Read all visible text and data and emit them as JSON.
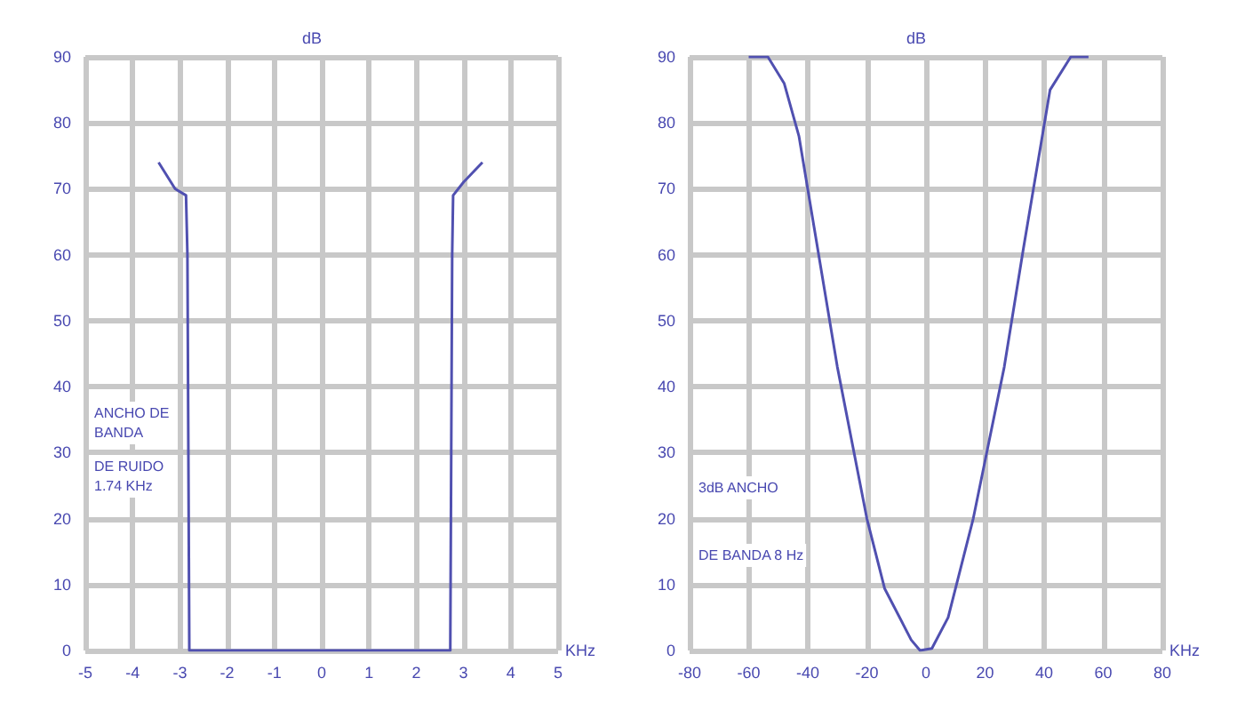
{
  "chart_data": [
    {
      "type": "line",
      "xlabel": "KHz",
      "ylabel": "dB",
      "x": [
        -3.45,
        -3.1,
        -2.87,
        -2.84,
        -2.8,
        2.72,
        2.76,
        2.78,
        3.0,
        3.4
      ],
      "series": [
        {
          "color": "#5050b0",
          "values": [
            74,
            70,
            69,
            60,
            0,
            0,
            60,
            69,
            71,
            74
          ]
        }
      ],
      "xlim": [
        -5,
        5
      ],
      "xticks": [
        -5,
        -4,
        -3,
        -2,
        -1,
        0,
        1,
        2,
        3,
        4,
        5
      ],
      "ylim": [
        0,
        90
      ],
      "yticks": [
        0,
        10,
        20,
        30,
        40,
        50,
        60,
        70,
        80,
        90
      ],
      "grid": true,
      "marker": "none",
      "line_style": "solid",
      "annotations": [
        "ANCHO DE\nBANDA",
        "DE RUIDO\n1.74 KHz"
      ]
    },
    {
      "type": "line",
      "xlabel": "KHz",
      "ylabel": "dB",
      "x": [
        -60,
        -53.5,
        -48,
        -43,
        -30,
        -20,
        -14,
        -5,
        -2,
        2,
        7.5,
        16,
        26.5,
        33,
        42,
        49,
        55
      ],
      "series": [
        {
          "color": "#5050b0",
          "values": [
            90,
            90,
            86,
            78,
            43,
            20,
            9.4,
            1.6,
            0,
            0.3,
            5,
            20,
            43,
            61,
            85,
            90,
            90
          ]
        }
      ],
      "xlim": [
        -80,
        80
      ],
      "xticks": [
        -80,
        -60,
        -40,
        -20,
        0,
        20,
        40,
        60,
        80
      ],
      "ylim": [
        0,
        90
      ],
      "yticks": [
        0,
        10,
        20,
        30,
        40,
        50,
        60,
        70,
        80,
        90
      ],
      "grid": true,
      "marker": "none",
      "line_style": "solid",
      "annotations": [
        "3dB ANCHO",
        "DE BANDA 8 Hz"
      ]
    }
  ]
}
